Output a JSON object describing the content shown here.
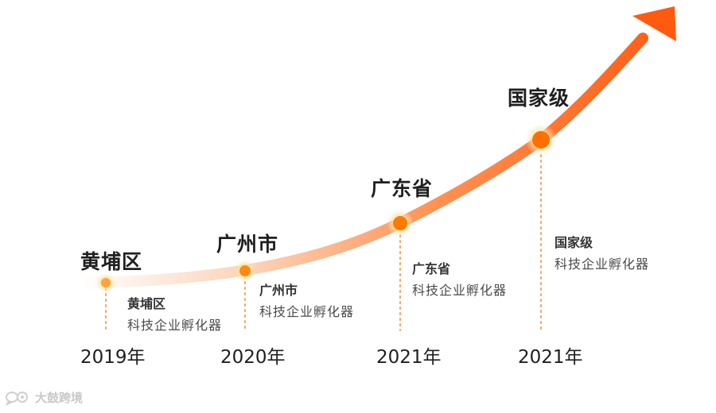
{
  "milestones": [
    {
      "level": "黄埔区",
      "desc_title": "黄埔区",
      "desc_sub": "科技企业孵化器",
      "year": "2019年"
    },
    {
      "level": "广州市",
      "desc_title": "广州市",
      "desc_sub": "科技企业孵化器",
      "year": "2020年"
    },
    {
      "level": "广东省",
      "desc_title": "广东省",
      "desc_sub": "科技企业孵化器",
      "year": "2021年"
    },
    {
      "level": "国家级",
      "desc_title": "国家级",
      "desc_sub": "科技企业孵化器",
      "year": "2021年"
    }
  ],
  "watermark": {
    "text": "大鼓跨境",
    "icon": "speech-bubble-logo-icon"
  },
  "colors": {
    "accent": "#ff6a13",
    "accent_light": "#fbe0cc",
    "dot": "#ff7a00",
    "dot_glow": "#fde3a8",
    "guide": "#f7a35c"
  }
}
